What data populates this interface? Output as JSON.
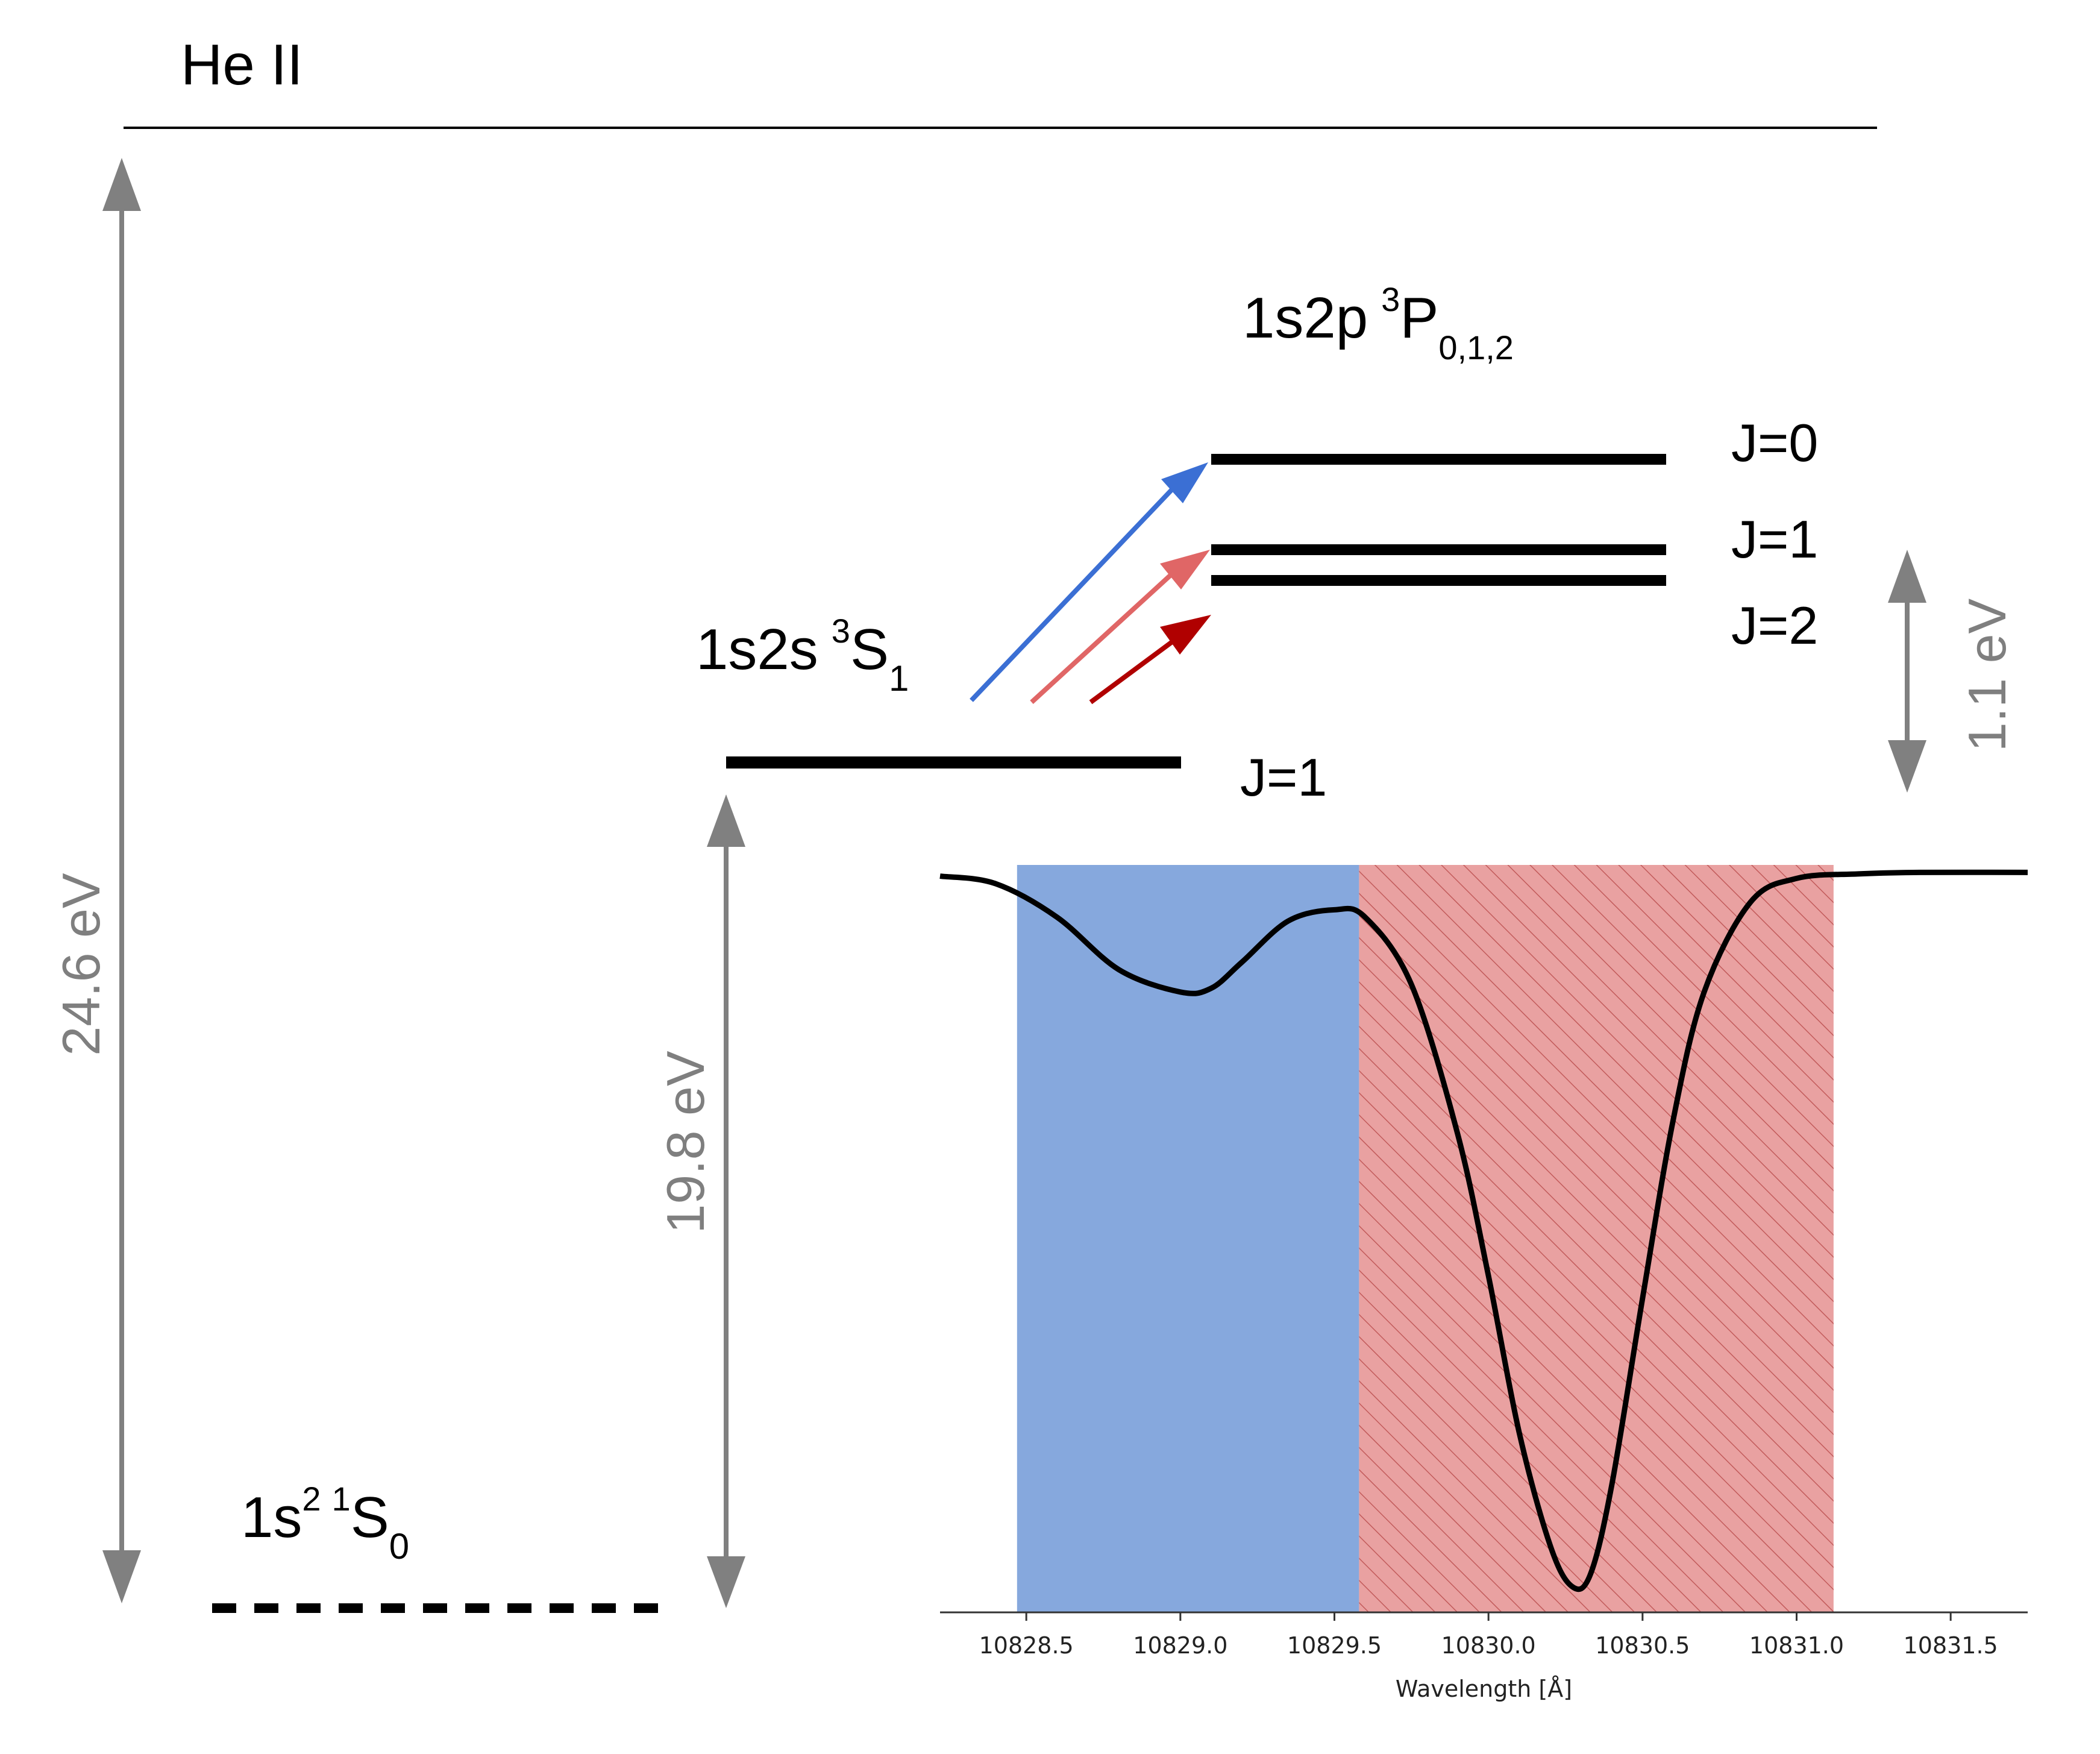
{
  "title": "He II",
  "levels": {
    "ground": {
      "config": "1s",
      "sup1": "2",
      "sup2": "1",
      "term": "S",
      "sub": "0"
    },
    "metastable": {
      "config": "1s2s",
      "sup": "3",
      "term": "S",
      "sub": "1",
      "j": "J=1"
    },
    "upper": {
      "config": "1s2p",
      "sup": "3",
      "term": "P",
      "sub": "0,1,2",
      "j0": "J=0",
      "j1": "J=1",
      "j2": "J=2"
    }
  },
  "energy_gaps": {
    "ionization": "24.6 eV",
    "metastable": "19.8 eV",
    "fine_structure": "1.1 eV"
  },
  "colors": {
    "transition_j0": "#3b6fd4",
    "transition_j1": "#e06666",
    "transition_j2": "#b00000",
    "blue_band": "#86a8dd",
    "red_band": "#e9a1a1",
    "hatch": "#c25b5b",
    "gap_arrow": "#808080"
  },
  "chart_data": {
    "type": "line",
    "xlabel": "Wavelength [Å]",
    "xlim": [
      10828.22,
      10831.75
    ],
    "xticks": [
      "10828.5",
      "10829.0",
      "10829.5",
      "10830.0",
      "10830.5",
      "10831.0",
      "10831.5"
    ],
    "ylim": [
      0.0,
      1.0
    ],
    "bands": [
      {
        "x0": 10828.47,
        "x1": 10829.58,
        "style": "solid-blue"
      },
      {
        "x0": 10829.58,
        "x1": 10831.12,
        "style": "hatched-red"
      }
    ],
    "series": [
      {
        "x": [
          10828.22,
          10828.4,
          10828.6,
          10828.8,
          10829.0,
          10829.1,
          10829.2,
          10829.35,
          10829.5,
          10829.6,
          10829.75,
          10829.9,
          10830.0,
          10830.1,
          10830.2,
          10830.27,
          10830.33,
          10830.4,
          10830.5,
          10830.6,
          10830.7,
          10830.85,
          10831.0,
          10831.2,
          10831.4,
          10831.75
        ],
        "y": [
          0.985,
          0.975,
          0.93,
          0.86,
          0.83,
          0.835,
          0.87,
          0.925,
          0.94,
          0.93,
          0.84,
          0.64,
          0.45,
          0.24,
          0.09,
          0.035,
          0.05,
          0.17,
          0.42,
          0.66,
          0.83,
          0.95,
          0.982,
          0.988,
          0.99,
          0.99
        ]
      }
    ]
  }
}
